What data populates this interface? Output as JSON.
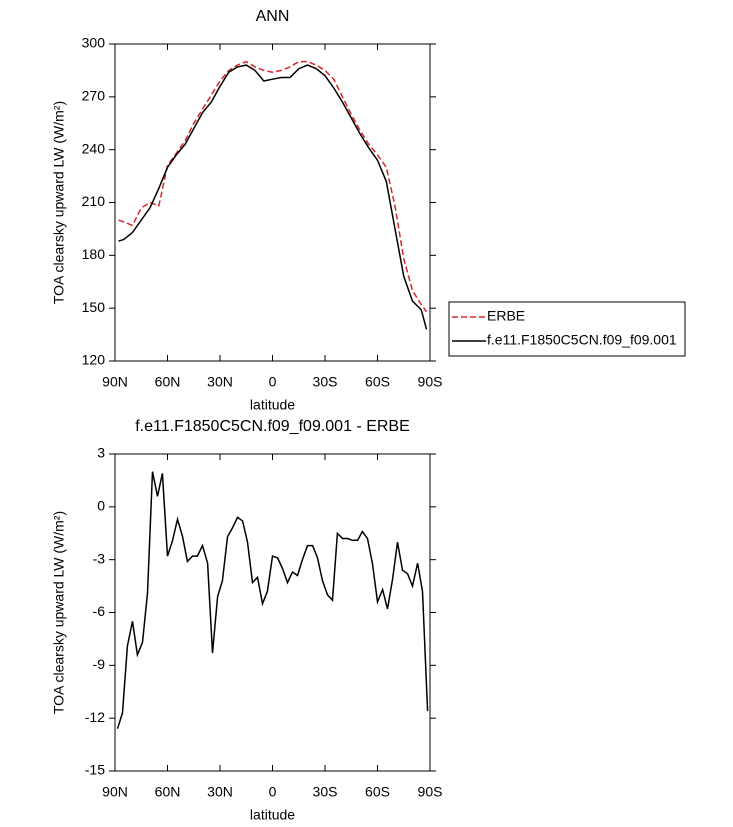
{
  "chart_data": [
    {
      "type": "line",
      "title": "ANN",
      "xlabel": "latitude",
      "ylabel": "TOA clearsky upward LW (W/m²)",
      "x": [
        88,
        85,
        80,
        75,
        70,
        65,
        60,
        55,
        50,
        45,
        40,
        35,
        30,
        25,
        20,
        15,
        10,
        5,
        0,
        -5,
        -10,
        -15,
        -20,
        -25,
        -30,
        -35,
        -40,
        -45,
        -50,
        -55,
        -60,
        -65,
        -70,
        -75,
        -80,
        -85,
        -88
      ],
      "series": [
        {
          "name": "ERBE",
          "color": "#d62728",
          "dash": true,
          "values": [
            200,
            199,
            197,
            207,
            210,
            208,
            231,
            238,
            245,
            255,
            263,
            271,
            279,
            285,
            288,
            290,
            287,
            285,
            284,
            285,
            287,
            290,
            290,
            288,
            285,
            280,
            270,
            260,
            251,
            243,
            237,
            230,
            208,
            178,
            160,
            152,
            148
          ]
        },
        {
          "name": "f.e11.F1850C5CN.f09_f09.001",
          "color": "#000000",
          "dash": false,
          "values": [
            188,
            189,
            193,
            200,
            207,
            218,
            230,
            237,
            243,
            252,
            261,
            267,
            276,
            284,
            287,
            288,
            285,
            279,
            280,
            281,
            281,
            286,
            288,
            286,
            282,
            275,
            267,
            258,
            249,
            241,
            234,
            222,
            195,
            168,
            154,
            149,
            138
          ]
        }
      ],
      "xlim": [
        90,
        -90
      ],
      "xticks": [
        {
          "value": 90,
          "label": "90N"
        },
        {
          "value": 60,
          "label": "60N"
        },
        {
          "value": 30,
          "label": "30N"
        },
        0,
        {
          "value": -30,
          "label": "30S"
        },
        {
          "value": -60,
          "label": "60S"
        },
        {
          "value": -90,
          "label": "90S"
        }
      ],
      "ylim": [
        120,
        300
      ],
      "yticks": [
        120,
        150,
        180,
        210,
        240,
        270,
        300
      ],
      "legend": "right"
    },
    {
      "type": "line",
      "title": "f.e11.F1850C5CN.f09_f09.001 - ERBE",
      "xlabel": "latitude",
      "ylabel": "TOA clearsky upward LW (W/m²)",
      "x": [
        88.6,
        85.7,
        82.9,
        80.0,
        77.2,
        74.3,
        71.4,
        68.6,
        65.7,
        62.9,
        60.0,
        57.1,
        54.3,
        51.4,
        48.6,
        45.7,
        42.9,
        40.0,
        37.1,
        34.3,
        31.4,
        28.6,
        25.7,
        22.9,
        20.0,
        17.1,
        14.3,
        11.4,
        8.6,
        5.7,
        2.9,
        0.0,
        -2.9,
        -5.7,
        -8.6,
        -11.4,
        -14.3,
        -17.1,
        -20.0,
        -22.9,
        -25.7,
        -28.6,
        -31.4,
        -34.3,
        -37.1,
        -40.0,
        -42.9,
        -45.7,
        -48.6,
        -51.4,
        -54.3,
        -57.1,
        -60.0,
        -62.9,
        -65.7,
        -68.6,
        -71.4,
        -74.3,
        -77.2,
        -80.0,
        -82.9,
        -85.7,
        -88.6
      ],
      "series": [
        {
          "color": "#000000",
          "dash": false,
          "values": [
            -12.6,
            -11.7,
            -7.9,
            -6.5,
            -8.4,
            -7.7,
            -4.9,
            2.0,
            0.6,
            1.9,
            -2.8,
            -1.9,
            -0.7,
            -1.7,
            -3.1,
            -2.8,
            -2.8,
            -2.2,
            -3.2,
            -8.3,
            -5.1,
            -4.2,
            -1.7,
            -1.2,
            -0.6,
            -0.8,
            -2.0,
            -4.3,
            -4.0,
            -5.5,
            -4.8,
            -2.8,
            -2.9,
            -3.5,
            -4.3,
            -3.7,
            -3.9,
            -3.0,
            -2.2,
            -2.2,
            -2.9,
            -4.2,
            -5.0,
            -5.3,
            -1.5,
            -1.8,
            -1.8,
            -1.9,
            -1.9,
            -1.4,
            -1.8,
            -3.2,
            -5.4,
            -4.7,
            -5.8,
            -4.1,
            -2.0,
            -3.6,
            -3.8,
            -4.5,
            -3.2,
            -4.8,
            -11.6
          ]
        }
      ],
      "xlim": [
        90,
        -90
      ],
      "xticks": [
        {
          "value": 90,
          "label": "90N"
        },
        {
          "value": 60,
          "label": "60N"
        },
        {
          "value": 30,
          "label": "30N"
        },
        0,
        {
          "value": -30,
          "label": "30S"
        },
        {
          "value": -60,
          "label": "60S"
        },
        {
          "value": -90,
          "label": "90S"
        }
      ],
      "ylim": [
        -15,
        3
      ],
      "yticks": [
        -15,
        -12,
        -9,
        -6,
        -3,
        0,
        3
      ]
    }
  ]
}
